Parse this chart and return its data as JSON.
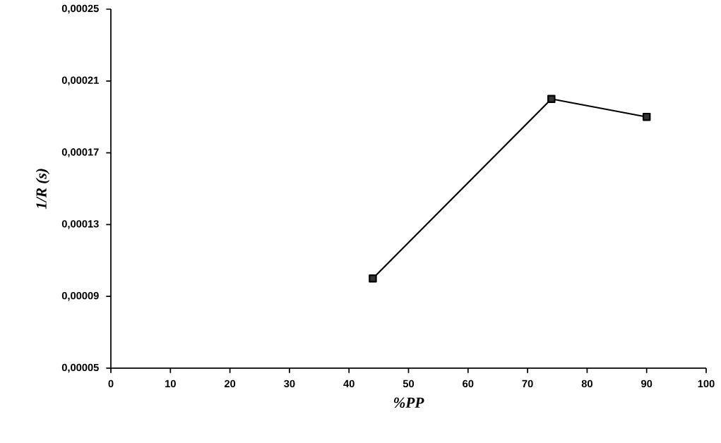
{
  "chart_data": {
    "type": "line",
    "xlabel": "%PP",
    "ylabel": "1/R (s)",
    "x": [
      44,
      74,
      90
    ],
    "series": [
      {
        "color": "#000000",
        "values": [
          0.0001,
          0.0002,
          0.00019
        ]
      }
    ],
    "xlim": [
      0,
      100
    ],
    "xticks": [
      0,
      10,
      20,
      30,
      40,
      50,
      60,
      70,
      80,
      90,
      100
    ],
    "ylim": [
      5e-05,
      0.00025
    ],
    "yticks": [
      {
        "value": 5e-05,
        "label": "0,00005"
      },
      {
        "value": 9e-05,
        "label": "0,00009"
      },
      {
        "value": 0.00013,
        "label": "0,00013"
      },
      {
        "value": 0.00017,
        "label": "0,00017"
      },
      {
        "value": 0.00021,
        "label": "0,00021"
      },
      {
        "value": 0.00025,
        "label": "0,00025"
      }
    ],
    "grid": false,
    "marker": "square",
    "line_style": "solid"
  }
}
